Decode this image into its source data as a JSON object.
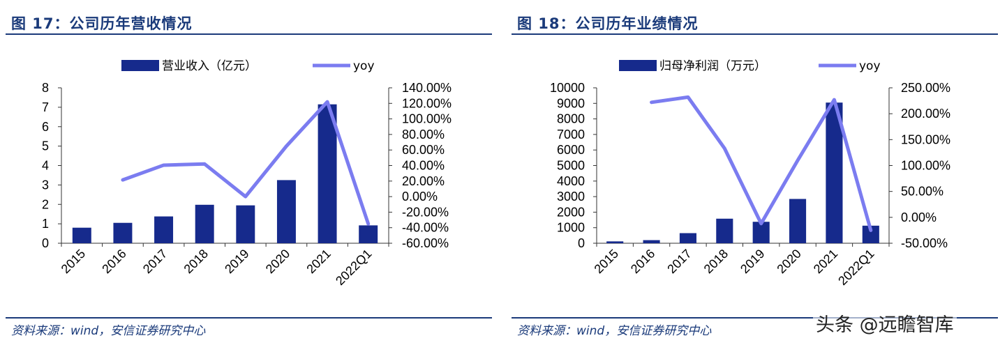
{
  "panels": [
    {
      "title": "图 17：公司历年营收情况",
      "source": "资料来源：wind，安信证券研究中心",
      "chart_data": {
        "type": "bar",
        "categories": [
          "2015",
          "2016",
          "2017",
          "2018",
          "2019",
          "2020",
          "2021",
          "2022Q1"
        ],
        "series": [
          {
            "name": "营业收入（亿元）",
            "kind": "bar",
            "axis": "left",
            "color": "#162a8c",
            "values": [
              0.8,
              1.05,
              1.38,
              1.98,
              1.95,
              3.25,
              7.15,
              0.92
            ]
          },
          {
            "name": "yoy",
            "kind": "line",
            "axis": "right",
            "color": "#7b7cf0",
            "values": [
              null,
              21.5,
              40.5,
              42.0,
              0.0,
              65.0,
              122.0,
              -35.0
            ]
          }
        ],
        "y_left": {
          "min": 0,
          "max": 8,
          "ticks": [
            "0",
            "1",
            "2",
            "3",
            "4",
            "5",
            "6",
            "7",
            "8"
          ]
        },
        "y_right": {
          "min": -60,
          "max": 140,
          "ticks": [
            "-60.00%",
            "-40.00%",
            "-20.00%",
            "0.00%",
            "20.00%",
            "40.00%",
            "60.00%",
            "80.00%",
            "100.00%",
            "120.00%",
            "140.00%"
          ]
        },
        "legend": "top-center",
        "grid": false
      }
    },
    {
      "title": "图 18：公司历年业绩情况",
      "source": "资料来源：wind，安信证券研究中心",
      "chart_data": {
        "type": "bar",
        "categories": [
          "2015",
          "2016",
          "2017",
          "2018",
          "2019",
          "2020",
          "2021",
          "2022Q1"
        ],
        "series": [
          {
            "name": "归母净利润（万元）",
            "kind": "bar",
            "axis": "left",
            "color": "#162a8c",
            "values": [
              120,
              200,
              650,
              1580,
              1380,
              2850,
              9050,
              1130
            ]
          },
          {
            "name": "yoy",
            "kind": "line",
            "axis": "right",
            "color": "#7b7cf0",
            "values": [
              null,
              222,
              232,
              133,
              -12,
              110,
              227,
              -25
            ]
          }
        ],
        "y_left": {
          "min": 0,
          "max": 10000,
          "ticks": [
            "0",
            "1000",
            "2000",
            "3000",
            "4000",
            "5000",
            "6000",
            "7000",
            "8000",
            "9000",
            "10000"
          ]
        },
        "y_right": {
          "min": -50,
          "max": 250,
          "ticks": [
            "-50.00%",
            "0.00%",
            "50.00%",
            "100.00%",
            "150.00%",
            "200.00%",
            "250.00%"
          ]
        },
        "legend": "top-center",
        "grid": false
      }
    }
  ],
  "watermark": "头条 @远瞻智库"
}
